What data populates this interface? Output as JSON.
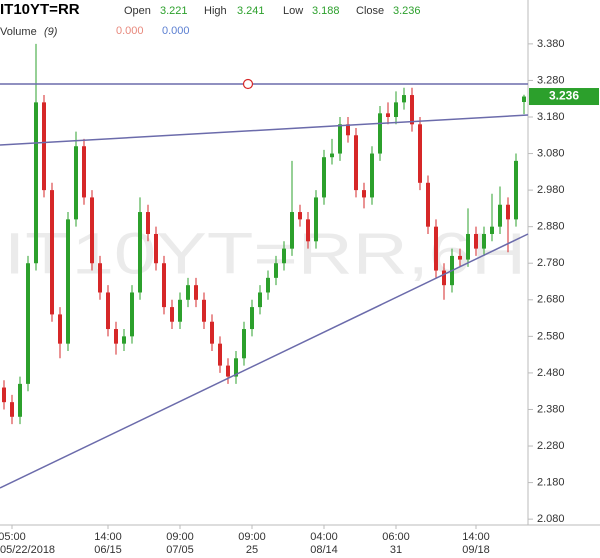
{
  "chart_data": {
    "type": "candlestick",
    "symbol": "IT10YT=RR",
    "open_label": "Open",
    "open": 3.221,
    "high_label": "High",
    "high": 3.241,
    "low_label": "Low",
    "low": 3.188,
    "close_label": "Close",
    "close": 3.236,
    "volume_label": "Volume",
    "volume_period": "(9)",
    "volume_values": [
      {
        "value": 0,
        "label": "0.000"
      },
      {
        "value": 0,
        "label": "0.000"
      }
    ],
    "watermark": "IT10YT=RR,6H",
    "up_color": "#2ca02c",
    "down_color": "#d62728",
    "ylim": [
      2.064,
      3.5
    ],
    "yticks": [
      {
        "value": 3.38,
        "label": "3.380"
      },
      {
        "value": 3.28,
        "label": "3.280"
      },
      {
        "value": 3.18,
        "label": "3.180"
      },
      {
        "value": 3.08,
        "label": "3.080"
      },
      {
        "value": 2.98,
        "label": "2.980"
      },
      {
        "value": 2.88,
        "label": "2.880"
      },
      {
        "value": 2.78,
        "label": "2.780"
      },
      {
        "value": 2.68,
        "label": "2.680"
      },
      {
        "value": 2.58,
        "label": "2.580"
      },
      {
        "value": 2.48,
        "label": "2.480"
      },
      {
        "value": 2.38,
        "label": "2.380"
      },
      {
        "value": 2.28,
        "label": "2.280"
      },
      {
        "value": 2.18,
        "label": "2.180"
      },
      {
        "value": 2.08,
        "label": "2.080"
      }
    ],
    "x_labels": [
      {
        "time": "05:00",
        "date": "05/22/2018"
      },
      {
        "time": "14:00",
        "date": "06/15"
      },
      {
        "time": "09:00",
        "date": "07/05"
      },
      {
        "time": "09:00",
        "date": "25"
      },
      {
        "time": "04:00",
        "date": "08/14"
      },
      {
        "time": "06:00",
        "date": "31"
      },
      {
        "time": "14:00",
        "date": "09/18"
      }
    ],
    "candles": [
      [
        2.44,
        2.46,
        2.38,
        2.4
      ],
      [
        2.4,
        2.42,
        2.34,
        2.36
      ],
      [
        2.36,
        2.47,
        2.34,
        2.45
      ],
      [
        2.45,
        2.8,
        2.43,
        2.78
      ],
      [
        2.78,
        3.38,
        2.76,
        3.22
      ],
      [
        3.22,
        3.24,
        2.96,
        2.98
      ],
      [
        2.98,
        3.0,
        2.62,
        2.64
      ],
      [
        2.64,
        2.66,
        2.52,
        2.56
      ],
      [
        2.56,
        2.92,
        2.54,
        2.9
      ],
      [
        2.9,
        3.14,
        2.88,
        3.1
      ],
      [
        3.1,
        3.12,
        2.94,
        2.96
      ],
      [
        2.96,
        2.98,
        2.76,
        2.78
      ],
      [
        2.78,
        2.8,
        2.68,
        2.7
      ],
      [
        2.7,
        2.72,
        2.58,
        2.6
      ],
      [
        2.6,
        2.62,
        2.53,
        2.56
      ],
      [
        2.56,
        2.6,
        2.54,
        2.58
      ],
      [
        2.58,
        2.72,
        2.56,
        2.7
      ],
      [
        2.7,
        2.96,
        2.68,
        2.92
      ],
      [
        2.92,
        2.94,
        2.84,
        2.86
      ],
      [
        2.86,
        2.88,
        2.76,
        2.78
      ],
      [
        2.78,
        2.8,
        2.64,
        2.66
      ],
      [
        2.66,
        2.68,
        2.6,
        2.62
      ],
      [
        2.62,
        2.7,
        2.6,
        2.68
      ],
      [
        2.68,
        2.74,
        2.66,
        2.72
      ],
      [
        2.72,
        2.74,
        2.66,
        2.68
      ],
      [
        2.68,
        2.7,
        2.6,
        2.62
      ],
      [
        2.62,
        2.64,
        2.54,
        2.56
      ],
      [
        2.56,
        2.58,
        2.48,
        2.5
      ],
      [
        2.5,
        2.52,
        2.45,
        2.47
      ],
      [
        2.47,
        2.54,
        2.45,
        2.52
      ],
      [
        2.52,
        2.62,
        2.5,
        2.6
      ],
      [
        2.6,
        2.68,
        2.58,
        2.66
      ],
      [
        2.66,
        2.72,
        2.64,
        2.7
      ],
      [
        2.7,
        2.76,
        2.68,
        2.74
      ],
      [
        2.74,
        2.8,
        2.72,
        2.78
      ],
      [
        2.78,
        2.84,
        2.76,
        2.82
      ],
      [
        2.82,
        3.06,
        2.8,
        2.92
      ],
      [
        2.92,
        2.94,
        2.88,
        2.9
      ],
      [
        2.9,
        2.92,
        2.82,
        2.84
      ],
      [
        2.84,
        2.98,
        2.82,
        2.96
      ],
      [
        2.96,
        3.09,
        2.94,
        3.07
      ],
      [
        3.07,
        3.12,
        3.05,
        3.08
      ],
      [
        3.08,
        3.18,
        3.06,
        3.16
      ],
      [
        3.16,
        3.18,
        3.11,
        3.13
      ],
      [
        3.13,
        3.15,
        2.96,
        2.98
      ],
      [
        2.98,
        3.0,
        2.93,
        2.96
      ],
      [
        2.96,
        3.1,
        2.94,
        3.08
      ],
      [
        3.08,
        3.21,
        3.06,
        3.19
      ],
      [
        3.19,
        3.22,
        3.16,
        3.18
      ],
      [
        3.18,
        3.25,
        3.16,
        3.22
      ],
      [
        3.22,
        3.26,
        3.2,
        3.24
      ],
      [
        3.24,
        3.26,
        3.14,
        3.16
      ],
      [
        3.16,
        3.18,
        2.98,
        3.0
      ],
      [
        3.0,
        3.02,
        2.86,
        2.88
      ],
      [
        2.88,
        2.9,
        2.74,
        2.76
      ],
      [
        2.76,
        2.78,
        2.68,
        2.72
      ],
      [
        2.72,
        2.82,
        2.7,
        2.8
      ],
      [
        2.8,
        2.82,
        2.77,
        2.79
      ],
      [
        2.79,
        2.93,
        2.77,
        2.86
      ],
      [
        2.86,
        2.88,
        2.8,
        2.82
      ],
      [
        2.82,
        2.88,
        2.8,
        2.86
      ],
      [
        2.86,
        2.97,
        2.84,
        2.88
      ],
      [
        2.88,
        2.99,
        2.86,
        2.94
      ],
      [
        2.94,
        2.96,
        2.81,
        2.9
      ],
      [
        2.9,
        3.08,
        2.88,
        3.06
      ],
      [
        3.221,
        3.241,
        3.188,
        3.236
      ]
    ]
  }
}
